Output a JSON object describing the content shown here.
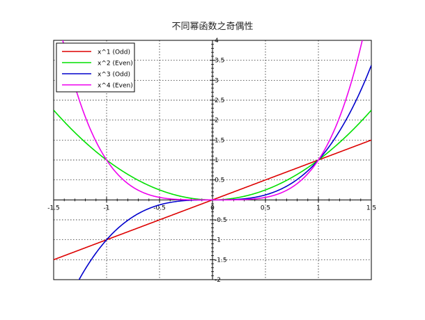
{
  "chart_data": {
    "type": "line",
    "title": "不同幂函数之奇偶性",
    "xlabel": "",
    "ylabel": "",
    "xlim": [
      -1.5,
      1.5
    ],
    "ylim": [
      -2,
      4
    ],
    "x_ticks": [
      "-1.5",
      "-1",
      "-0.5",
      "0",
      "0.5",
      "1",
      "1.5"
    ],
    "y_ticks": [
      "-2",
      "-1.5",
      "-1",
      "-0.5",
      "0",
      "0.5",
      "1",
      "1.5",
      "2",
      "2.5",
      "3",
      "3.5",
      "4"
    ],
    "grid": true,
    "legend_position": "top-left",
    "series": [
      {
        "name": "x^1 (Odd)",
        "exponent": 1,
        "color": "#dd0000"
      },
      {
        "name": "x^2 (Even)",
        "exponent": 2,
        "color": "#00e000"
      },
      {
        "name": "x^3 (Odd)",
        "exponent": 3,
        "color": "#0000cc"
      },
      {
        "name": "x^4 (Even)",
        "exponent": 4,
        "color": "#ee00ee"
      }
    ],
    "sample_x": [
      -1.5,
      -1.4,
      -1.3,
      -1.2,
      -1.1,
      -1.0,
      -0.9,
      -0.8,
      -0.7,
      -0.6,
      -0.5,
      -0.4,
      -0.3,
      -0.2,
      -0.1,
      0.0,
      0.1,
      0.2,
      0.3,
      0.4,
      0.5,
      0.6,
      0.7,
      0.8,
      0.9,
      1.0,
      1.1,
      1.2,
      1.3,
      1.4,
      1.5
    ]
  }
}
